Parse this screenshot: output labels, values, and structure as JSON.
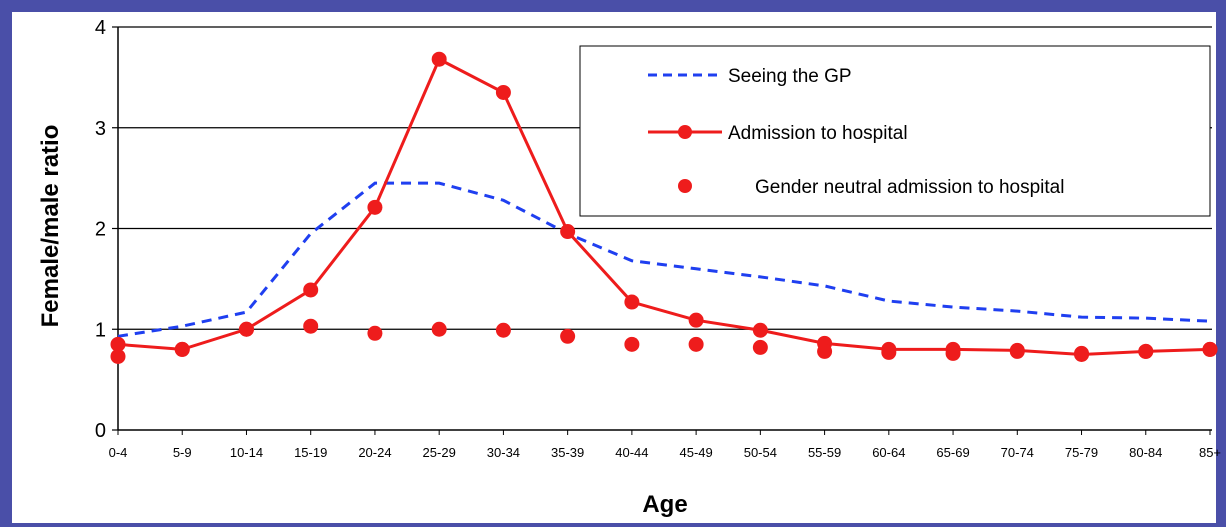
{
  "chart_data": {
    "type": "line",
    "title": "",
    "xlabel": "Age",
    "ylabel": "Female/male ratio",
    "categories": [
      "0-4",
      "5-9",
      "10-14",
      "15-19",
      "20-24",
      "25-29",
      "30-34",
      "35-39",
      "40-44",
      "45-49",
      "50-54",
      "55-59",
      "60-64",
      "65-69",
      "70-74",
      "75-79",
      "80-84",
      "85+"
    ],
    "ylim": [
      0,
      4
    ],
    "yticks": [
      "0",
      "1",
      "2",
      "3",
      "4"
    ],
    "grid": "horizontal",
    "legend_position": "top-right",
    "series": [
      {
        "name": "Seeing the GP",
        "style": "dashed",
        "color": "#1f3ff0",
        "values": [
          0.93,
          1.03,
          1.17,
          1.95,
          2.45,
          2.45,
          2.28,
          1.95,
          1.68,
          1.6,
          1.52,
          1.43,
          1.28,
          1.22,
          1.18,
          1.12,
          1.11,
          1.08
        ]
      },
      {
        "name": "Admission to hospital",
        "style": "line-marker",
        "color": "#ee1c1c",
        "values": [
          0.85,
          0.8,
          1.0,
          1.39,
          2.21,
          3.68,
          3.35,
          1.97,
          1.27,
          1.09,
          0.99,
          0.86,
          0.8,
          0.8,
          0.79,
          0.75,
          0.78,
          0.8
        ]
      },
      {
        "name": "Gender neutral admission to hospital",
        "style": "marker",
        "color": "#ee1c1c",
        "values": [
          0.73,
          0.8,
          1.0,
          1.03,
          0.96,
          1.0,
          0.99,
          0.93,
          0.85,
          0.85,
          0.82,
          0.78,
          0.77,
          0.76,
          0.78,
          0.76,
          0.78,
          0.8
        ]
      }
    ]
  },
  "colors": {
    "border": "#4a4fa8",
    "gp_line": "#1f3ff0",
    "hospital": "#ee1c1c"
  }
}
